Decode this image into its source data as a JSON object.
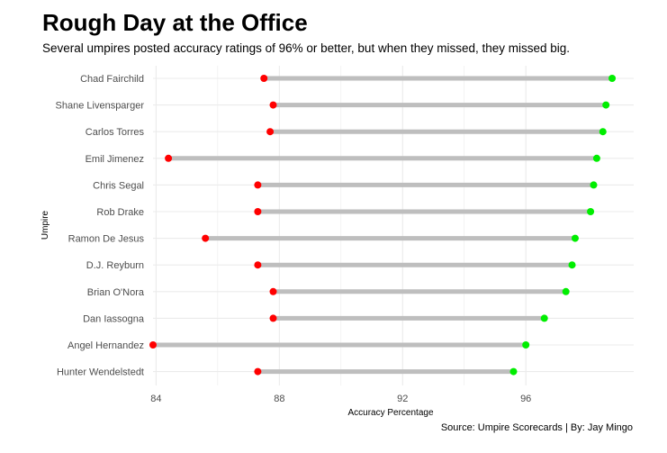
{
  "title": "Rough Day at the Office",
  "subtitle": "Several umpires posted accuracy ratings of 96% or better, but when they missed, they missed big.",
  "caption": "Source: Umpire Scorecards | By: Jay Mingo",
  "colors": {
    "low": "#ff0000",
    "high": "#00ee00",
    "segment": "#bebebe",
    "grid": "#ebebeb"
  },
  "chart_data": {
    "type": "dumbbell",
    "title": "Rough Day at the Office",
    "subtitle": "Several umpires posted accuracy ratings of 96% or better, but when they missed, they missed big.",
    "xlabel": "Accuracy Percentage",
    "ylabel": "Umpire",
    "xlim": [
      83.9,
      99.5
    ],
    "xticks": [
      84,
      88,
      92,
      96
    ],
    "grid": true,
    "categories": [
      "Chad Fairchild",
      "Shane Livensparger",
      "Carlos Torres",
      "Emil Jimenez",
      "Chris Segal",
      "Rob Drake",
      "Ramon De Jesus",
      "D.J. Reyburn",
      "Brian O'Nora",
      "Dan Iassogna",
      "Angel Hernandez",
      "Hunter Wendelstedt"
    ],
    "series": [
      {
        "values": [
          87.5,
          87.8,
          87.7,
          84.4,
          87.3,
          87.3,
          85.6,
          87.3,
          87.8,
          87.8,
          83.9,
          87.3
        ]
      },
      {
        "values": [
          98.8,
          98.6,
          98.5,
          98.3,
          98.2,
          98.1,
          97.6,
          97.5,
          97.3,
          96.6,
          96.0,
          95.6
        ]
      }
    ]
  }
}
